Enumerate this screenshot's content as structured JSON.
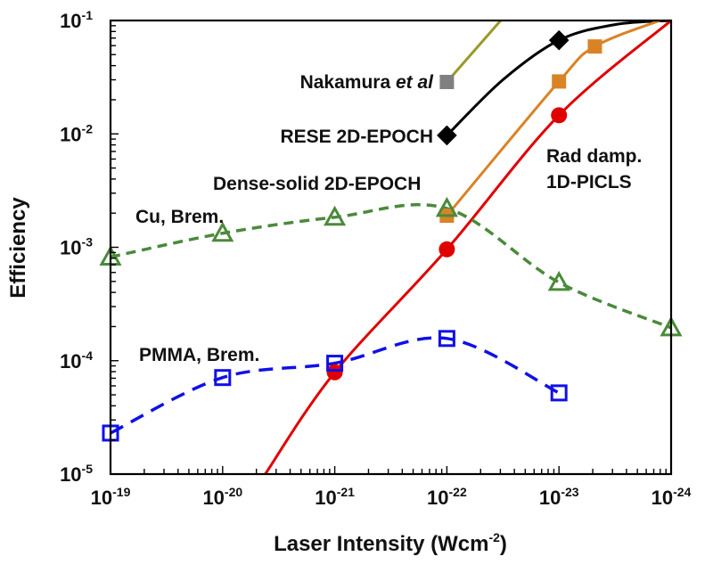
{
  "chart_data": {
    "type": "line",
    "title": "",
    "xlabel": "Laser Intensity (Wcm",
    "xlabel_sup": "-2",
    "xlabel_close": ")",
    "ylabel": "Efficiency",
    "xscale": "log",
    "yscale": "log",
    "xlim_exponent": [
      -19,
      -24
    ],
    "ylim": [
      1e-05,
      0.1
    ],
    "grid": false,
    "legend": "none (inline annotations)",
    "x_tick_labels": [
      {
        "base": "10",
        "exp": "-19"
      },
      {
        "base": "10",
        "exp": "-20"
      },
      {
        "base": "10",
        "exp": "-21"
      },
      {
        "base": "10",
        "exp": "-22"
      },
      {
        "base": "10",
        "exp": "-23"
      },
      {
        "base": "10",
        "exp": "-24"
      }
    ],
    "y_tick_labels": [
      {
        "base": "10",
        "exp": "-1",
        "value": 0.1
      },
      {
        "base": "10",
        "exp": "-2",
        "value": 0.01
      },
      {
        "base": "10",
        "exp": "-3",
        "value": 0.001
      },
      {
        "base": "10",
        "exp": "-4",
        "value": 0.0001
      },
      {
        "base": "10",
        "exp": "-5",
        "value": 1e-05
      }
    ],
    "series": [
      {
        "name": "Nakamura et al",
        "label_parts": [
          "Nakamura ",
          "et al"
        ],
        "color": "#9a9a2a",
        "marker": "square",
        "marker_color": "#808080",
        "dash": "solid",
        "x_exp": [
          -22,
          -22.48
        ],
        "values": [
          0.0287,
          0.1
        ],
        "marker_indices": [
          0
        ]
      },
      {
        "name": "RESE 2D-EPOCH",
        "color": "#000000",
        "marker": "diamond",
        "marker_color": "#000000",
        "dash": "solid",
        "x_exp": [
          -22,
          -22.5,
          -23,
          -23.5,
          -24
        ],
        "values": [
          0.0097,
          0.03,
          0.067,
          0.092,
          0.1
        ],
        "marker_indices": [
          0,
          2
        ]
      },
      {
        "name": "Dense-solid 2D-EPOCH",
        "color": "#d98326",
        "marker": "square",
        "marker_color": "#d98326",
        "dash": "solid",
        "x_exp": [
          -22,
          -23,
          -23.32,
          -23.9
        ],
        "values": [
          0.0019,
          0.029,
          0.059,
          0.1
        ],
        "marker_indices": [
          0,
          1,
          2
        ]
      },
      {
        "name": "Rad damp. 1D-PICLS",
        "label_lines": [
          "Rad damp.",
          "1D-PICLS"
        ],
        "color": "#e00000",
        "marker": "circle",
        "marker_color": "#e00000",
        "dash": "solid",
        "x_exp": [
          -20.38,
          -21,
          -22,
          -23,
          -24
        ],
        "values": [
          1e-05,
          7.9e-05,
          0.00096,
          0.0146,
          0.1
        ],
        "marker_indices": [
          1,
          2,
          3
        ]
      },
      {
        "name": "Cu, Brem.",
        "color": "#4a8a3a",
        "marker": "triangle-open",
        "marker_color": "#4a8a3a",
        "dash": "dashed",
        "x_exp": [
          -19,
          -20,
          -21,
          -22,
          -23,
          -24
        ],
        "values": [
          0.00082,
          0.00133,
          0.00184,
          0.0022,
          0.00049,
          0.000195
        ],
        "marker_indices": [
          0,
          1,
          2,
          3,
          4,
          5
        ]
      },
      {
        "name": "PMMA, Brem.",
        "color": "#1010e8",
        "marker": "square-open",
        "marker_color": "#1010e8",
        "dash": "dashed",
        "x_exp": [
          -19,
          -20,
          -21,
          -22,
          -23
        ],
        "values": [
          2.3e-05,
          7.1e-05,
          9.5e-05,
          0.000157,
          5.2e-05
        ],
        "marker_indices": [
          0,
          1,
          2,
          3,
          4
        ]
      }
    ]
  }
}
